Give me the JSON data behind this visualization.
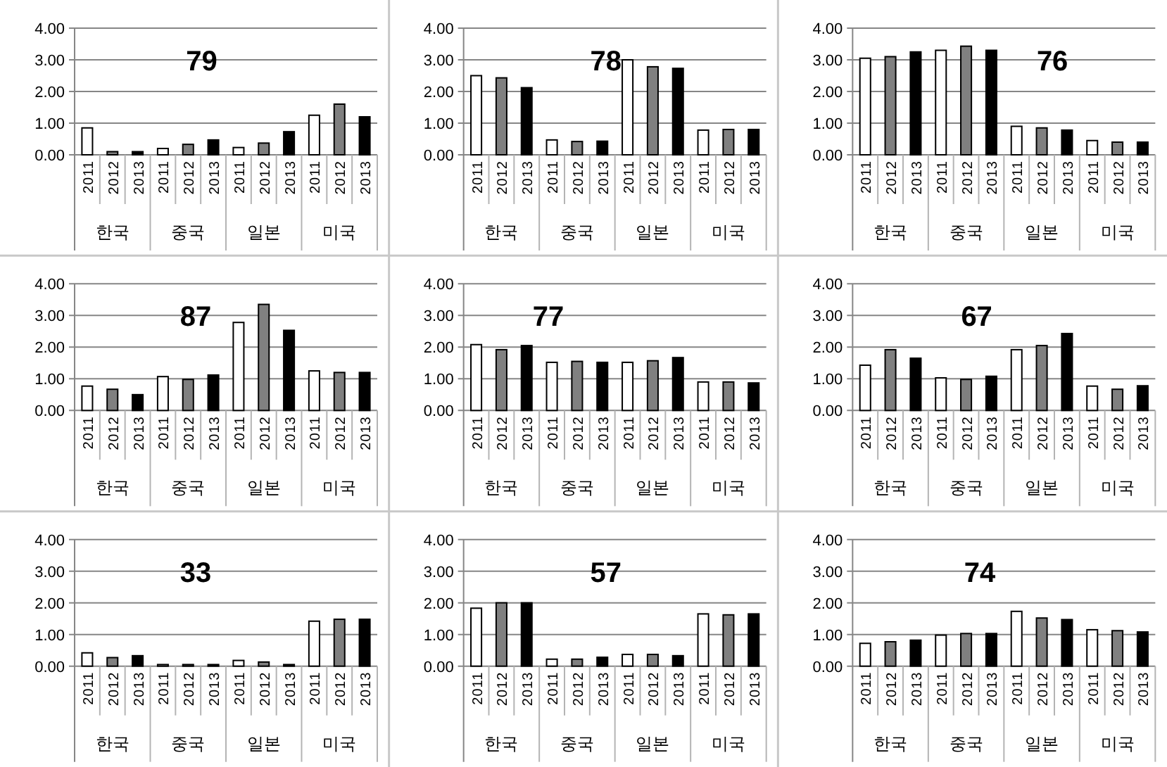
{
  "chart_data": [
    {
      "type": "bar",
      "title": "79",
      "categories": [
        "2011",
        "2012",
        "2013",
        "2011",
        "2012",
        "2013",
        "2011",
        "2012",
        "2013",
        "2011",
        "2012",
        "2013"
      ],
      "values": [
        0.85,
        0.1,
        0.1,
        0.2,
        0.33,
        0.47,
        0.23,
        0.37,
        0.73,
        1.25,
        1.6,
        1.2
      ],
      "colors": [
        "#ffffff",
        "#808080",
        "#000000",
        "#ffffff",
        "#808080",
        "#000000",
        "#ffffff",
        "#808080",
        "#000000",
        "#ffffff",
        "#808080",
        "#000000"
      ],
      "ylim": [
        0,
        4
      ],
      "yticks": [
        {
          "value": 0,
          "label": "0.00"
        },
        {
          "value": 1,
          "label": "1.00"
        },
        {
          "value": 2,
          "label": "2.00"
        },
        {
          "value": 3,
          "label": "3.00"
        },
        {
          "value": 4,
          "label": "4.00"
        }
      ],
      "grid": "y",
      "annotations": [
        "한국",
        "중국",
        "일본",
        "미국"
      ]
    },
    {
      "type": "bar",
      "title": "78",
      "categories": [
        "2011",
        "2012",
        "2013",
        "2011",
        "2012",
        "2013",
        "2011",
        "2012",
        "2013",
        "2011",
        "2012",
        "2013"
      ],
      "values": [
        2.5,
        2.43,
        2.12,
        0.47,
        0.42,
        0.43,
        3.0,
        2.78,
        2.73,
        0.78,
        0.8,
        0.8
      ],
      "colors": [
        "#ffffff",
        "#808080",
        "#000000",
        "#ffffff",
        "#808080",
        "#000000",
        "#ffffff",
        "#808080",
        "#000000",
        "#ffffff",
        "#808080",
        "#000000"
      ],
      "ylim": [
        0,
        4
      ],
      "yticks": [
        {
          "value": 0,
          "label": "0.00"
        },
        {
          "value": 1,
          "label": "1.00"
        },
        {
          "value": 2,
          "label": "2.00"
        },
        {
          "value": 3,
          "label": "3.00"
        },
        {
          "value": 4,
          "label": "4.00"
        }
      ],
      "grid": "y",
      "annotations": [
        "한국",
        "중국",
        "일본",
        "미국"
      ]
    },
    {
      "type": "bar",
      "title": "76",
      "categories": [
        "2011",
        "2012",
        "2013",
        "2011",
        "2012",
        "2013",
        "2011",
        "2012",
        "2013",
        "2011",
        "2012",
        "2013"
      ],
      "values": [
        3.05,
        3.1,
        3.25,
        3.3,
        3.43,
        3.3,
        0.9,
        0.85,
        0.78,
        0.45,
        0.4,
        0.4
      ],
      "colors": [
        "#ffffff",
        "#808080",
        "#000000",
        "#ffffff",
        "#808080",
        "#000000",
        "#ffffff",
        "#808080",
        "#000000",
        "#ffffff",
        "#808080",
        "#000000"
      ],
      "ylim": [
        0,
        4
      ],
      "yticks": [
        {
          "value": 0,
          "label": "0.00"
        },
        {
          "value": 1,
          "label": "1.00"
        },
        {
          "value": 2,
          "label": "2.00"
        },
        {
          "value": 3,
          "label": "3.00"
        },
        {
          "value": 4,
          "label": "4.00"
        }
      ],
      "grid": "y",
      "annotations": [
        "한국",
        "중국",
        "일본",
        "미국"
      ]
    },
    {
      "type": "bar",
      "title": "87",
      "categories": [
        "2011",
        "2012",
        "2013",
        "2011",
        "2012",
        "2013",
        "2011",
        "2012",
        "2013",
        "2011",
        "2012",
        "2013"
      ],
      "values": [
        0.77,
        0.67,
        0.5,
        1.07,
        0.98,
        1.12,
        2.78,
        3.35,
        2.53,
        1.25,
        1.2,
        1.2
      ],
      "colors": [
        "#ffffff",
        "#808080",
        "#000000",
        "#ffffff",
        "#808080",
        "#000000",
        "#ffffff",
        "#808080",
        "#000000",
        "#ffffff",
        "#808080",
        "#000000"
      ],
      "ylim": [
        0,
        4
      ],
      "yticks": [
        {
          "value": 0,
          "label": "0.00"
        },
        {
          "value": 1,
          "label": "1.00"
        },
        {
          "value": 2,
          "label": "2.00"
        },
        {
          "value": 3,
          "label": "3.00"
        },
        {
          "value": 4,
          "label": "4.00"
        }
      ],
      "grid": "y",
      "annotations": [
        "한국",
        "중국",
        "일본",
        "미국"
      ]
    },
    {
      "type": "bar",
      "title": "77",
      "categories": [
        "2011",
        "2012",
        "2013",
        "2011",
        "2012",
        "2013",
        "2011",
        "2012",
        "2013",
        "2011",
        "2012",
        "2013"
      ],
      "values": [
        2.08,
        1.92,
        2.05,
        1.52,
        1.55,
        1.52,
        1.52,
        1.57,
        1.67,
        0.9,
        0.9,
        0.87
      ],
      "colors": [
        "#ffffff",
        "#808080",
        "#000000",
        "#ffffff",
        "#808080",
        "#000000",
        "#ffffff",
        "#808080",
        "#000000",
        "#ffffff",
        "#808080",
        "#000000"
      ],
      "ylim": [
        0,
        4
      ],
      "yticks": [
        {
          "value": 0,
          "label": "0.00"
        },
        {
          "value": 1,
          "label": "1.00"
        },
        {
          "value": 2,
          "label": "2.00"
        },
        {
          "value": 3,
          "label": "3.00"
        },
        {
          "value": 4,
          "label": "4.00"
        }
      ],
      "grid": "y",
      "annotations": [
        "한국",
        "중국",
        "일본",
        "미국"
      ]
    },
    {
      "type": "bar",
      "title": "67",
      "categories": [
        "2011",
        "2012",
        "2013",
        "2011",
        "2012",
        "2013",
        "2011",
        "2012",
        "2013",
        "2011",
        "2012",
        "2013"
      ],
      "values": [
        1.43,
        1.92,
        1.65,
        1.03,
        0.98,
        1.08,
        1.92,
        2.05,
        2.43,
        0.77,
        0.67,
        0.78
      ],
      "colors": [
        "#ffffff",
        "#808080",
        "#000000",
        "#ffffff",
        "#808080",
        "#000000",
        "#ffffff",
        "#808080",
        "#000000",
        "#ffffff",
        "#808080",
        "#000000"
      ],
      "ylim": [
        0,
        4
      ],
      "yticks": [
        {
          "value": 0,
          "label": "0.00"
        },
        {
          "value": 1,
          "label": "1.00"
        },
        {
          "value": 2,
          "label": "2.00"
        },
        {
          "value": 3,
          "label": "3.00"
        },
        {
          "value": 4,
          "label": "4.00"
        }
      ],
      "grid": "y",
      "annotations": [
        "한국",
        "중국",
        "일본",
        "미국"
      ]
    },
    {
      "type": "bar",
      "title": "33",
      "categories": [
        "2011",
        "2012",
        "2013",
        "2011",
        "2012",
        "2013",
        "2011",
        "2012",
        "2013",
        "2011",
        "2012",
        "2013"
      ],
      "values": [
        0.42,
        0.27,
        0.33,
        0.05,
        0.05,
        0.05,
        0.18,
        0.13,
        0.05,
        1.42,
        1.48,
        1.48
      ],
      "colors": [
        "#ffffff",
        "#808080",
        "#000000",
        "#ffffff",
        "#808080",
        "#000000",
        "#ffffff",
        "#808080",
        "#000000",
        "#ffffff",
        "#808080",
        "#000000"
      ],
      "ylim": [
        0,
        4
      ],
      "yticks": [
        {
          "value": 0,
          "label": "0.00"
        },
        {
          "value": 1,
          "label": "1.00"
        },
        {
          "value": 2,
          "label": "2.00"
        },
        {
          "value": 3,
          "label": "3.00"
        },
        {
          "value": 4,
          "label": "4.00"
        }
      ],
      "grid": "y",
      "annotations": [
        "한국",
        "중국",
        "일본",
        "미국"
      ]
    },
    {
      "type": "bar",
      "title": "57",
      "categories": [
        "2011",
        "2012",
        "2013",
        "2011",
        "2012",
        "2013",
        "2011",
        "2012",
        "2013",
        "2011",
        "2012",
        "2013"
      ],
      "values": [
        1.83,
        2.0,
        2.0,
        0.22,
        0.22,
        0.28,
        0.37,
        0.37,
        0.33,
        1.65,
        1.62,
        1.65
      ],
      "colors": [
        "#ffffff",
        "#808080",
        "#000000",
        "#ffffff",
        "#808080",
        "#000000",
        "#ffffff",
        "#808080",
        "#000000",
        "#ffffff",
        "#808080",
        "#000000"
      ],
      "ylim": [
        0,
        4
      ],
      "yticks": [
        {
          "value": 0,
          "label": "0.00"
        },
        {
          "value": 1,
          "label": "1.00"
        },
        {
          "value": 2,
          "label": "2.00"
        },
        {
          "value": 3,
          "label": "3.00"
        },
        {
          "value": 4,
          "label": "4.00"
        }
      ],
      "grid": "y",
      "annotations": [
        "한국",
        "중국",
        "일본",
        "미국"
      ]
    },
    {
      "type": "bar",
      "title": "74",
      "categories": [
        "2011",
        "2012",
        "2013",
        "2011",
        "2012",
        "2013",
        "2011",
        "2012",
        "2013",
        "2011",
        "2012",
        "2013"
      ],
      "values": [
        0.72,
        0.77,
        0.82,
        0.98,
        1.03,
        1.03,
        1.73,
        1.52,
        1.47,
        1.15,
        1.12,
        1.08
      ],
      "colors": [
        "#ffffff",
        "#808080",
        "#000000",
        "#ffffff",
        "#808080",
        "#000000",
        "#ffffff",
        "#808080",
        "#000000",
        "#ffffff",
        "#808080",
        "#000000"
      ],
      "ylim": [
        0,
        4
      ],
      "yticks": [
        {
          "value": 0,
          "label": "0.00"
        },
        {
          "value": 1,
          "label": "1.00"
        },
        {
          "value": 2,
          "label": "2.00"
        },
        {
          "value": 3,
          "label": "3.00"
        },
        {
          "value": 4,
          "label": "4.00"
        }
      ],
      "grid": "y",
      "annotations": [
        "한국",
        "중국",
        "일본",
        "미국"
      ]
    }
  ]
}
